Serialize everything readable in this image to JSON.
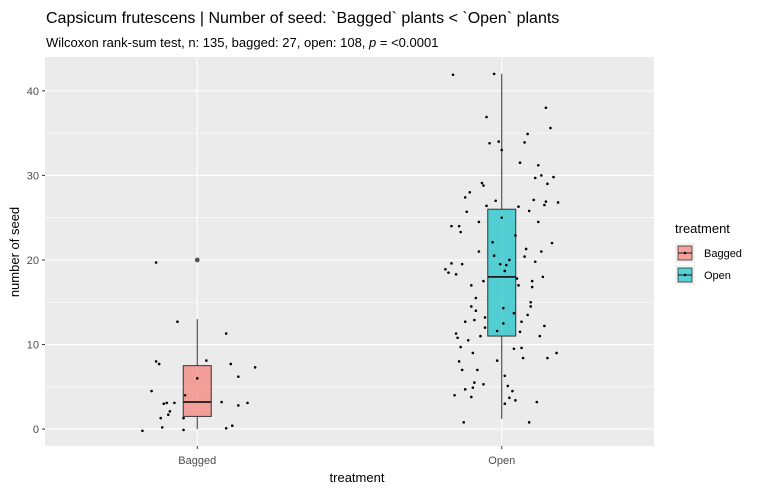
{
  "chart_data": {
    "type": "box",
    "title": "Capsicum frutescens | Number of seed: `Bagged` plants < `Open` plants",
    "subtitle": {
      "prefix": "Wilcoxon rank-sum test, n: 135, bagged: 27, open: 108, ",
      "p_symbol": "p",
      "suffix": " = <0.0001"
    },
    "xlabel": "treatment",
    "ylabel": "number of seed",
    "ylim": [
      -2,
      44
    ],
    "yticks": [
      0,
      10,
      20,
      30,
      40
    ],
    "categories": [
      "Bagged",
      "Open"
    ],
    "grid": true,
    "legend": {
      "title": "treatment",
      "position": "right",
      "entries": [
        "Bagged",
        "Open"
      ]
    },
    "colors": {
      "Bagged": "#F8766D",
      "Open": "#00BFC4",
      "panel": "#EBEBEB",
      "grid": "#FFFFFF",
      "points": "#000000",
      "outlier": "#555555"
    },
    "boxes": [
      {
        "category": "Bagged",
        "min": 0,
        "q1": 1.5,
        "median": 3.2,
        "q3": 7.5,
        "max": 13,
        "outliers": [
          20
        ]
      },
      {
        "category": "Open",
        "min": 1.2,
        "q1": 11,
        "median": 18,
        "q3": 26,
        "max": 42,
        "outliers": []
      }
    ],
    "points": [
      {
        "category": "Bagged",
        "jitter": [
          -0.36,
          -0.3,
          -0.27,
          -0.27,
          -0.25,
          -0.24,
          -0.23,
          -0.22,
          -0.2,
          -0.19,
          -0.18,
          -0.15,
          -0.13,
          -0.09,
          -0.09,
          -0.08,
          0.0,
          0.06,
          0.16,
          0.19,
          0.19,
          0.22,
          0.23,
          0.27,
          0.27,
          0.33,
          0.38
        ],
        "values": [
          -0.2,
          4.5,
          8.0,
          19.7,
          7.7,
          1.3,
          0.2,
          3.0,
          3.1,
          1.7,
          2.1,
          3.1,
          12.7,
          1.3,
          -0.1,
          4.0,
          6.0,
          8.1,
          3.2,
          11.3,
          0.1,
          7.7,
          0.4,
          2.8,
          6.2,
          3.1,
          7.3
        ]
      },
      {
        "category": "Open",
        "jitter": [
          -0.37,
          -0.35,
          -0.33,
          -0.33,
          -0.32,
          -0.31,
          -0.3,
          -0.3,
          -0.29,
          -0.28,
          -0.28,
          -0.27,
          -0.27,
          -0.26,
          -0.26,
          -0.25,
          -0.24,
          -0.24,
          -0.24,
          -0.23,
          -0.22,
          -0.21,
          -0.2,
          -0.2,
          -0.2,
          -0.19,
          -0.19,
          -0.18,
          -0.18,
          -0.17,
          -0.17,
          -0.16,
          -0.15,
          -0.15,
          -0.14,
          -0.13,
          -0.12,
          -0.12,
          -0.12,
          -0.11,
          -0.11,
          -0.1,
          -0.1,
          -0.08,
          -0.06,
          -0.05,
          -0.05,
          -0.04,
          -0.03,
          -0.03,
          -0.02,
          -0.01,
          0.0,
          0.0,
          0.01,
          0.01,
          0.02,
          0.02,
          0.02,
          0.03,
          0.04,
          0.05,
          0.05,
          0.07,
          0.08,
          0.08,
          0.09,
          0.09,
          0.1,
          0.11,
          0.11,
          0.12,
          0.12,
          0.13,
          0.13,
          0.14,
          0.15,
          0.15,
          0.16,
          0.17,
          0.17,
          0.18,
          0.18,
          0.19,
          0.19,
          0.2,
          0.2,
          0.21,
          0.22,
          0.22,
          0.23,
          0.24,
          0.24,
          0.25,
          0.26,
          0.26,
          0.27,
          0.28,
          0.28,
          0.29,
          0.29,
          0.3,
          0.3,
          0.32,
          0.33,
          0.34,
          0.36,
          0.37
        ],
        "values": [
          18.9,
          18.5,
          24.0,
          19.6,
          41.9,
          4.0,
          11.3,
          18.3,
          10.8,
          24.0,
          8.0,
          23.3,
          9.7,
          19.5,
          7.0,
          0.8,
          27.4,
          12.7,
          4.7,
          25.7,
          10.5,
          28.0,
          14.5,
          17.0,
          3.8,
          4.9,
          9.0,
          12.9,
          5.5,
          15.5,
          14.0,
          7.0,
          21.0,
          24.5,
          11.0,
          29.1,
          5.3,
          28.8,
          17.5,
          12.0,
          13.2,
          26.4,
          36.9,
          33.8,
          22.1,
          42.0,
          20.5,
          27.0,
          11.6,
          8.1,
          34.0,
          19.5,
          25.0,
          33.0,
          14.3,
          12.5,
          18.7,
          6.3,
          3.0,
          19.4,
          5.1,
          20.0,
          3.7,
          4.5,
          9.5,
          13.7,
          22.9,
          3.4,
          17.8,
          26.3,
          17.0,
          11.5,
          31.5,
          12.7,
          9.6,
          8.4,
          33.9,
          20.4,
          21.3,
          34.9,
          13.5,
          25.8,
          0.8,
          14.5,
          15.0,
          17.5,
          16.8,
          27.1,
          29.7,
          19.8,
          3.2,
          31.2,
          24.5,
          11.0,
          30.0,
          21.0,
          18.0,
          26.5,
          12.2,
          26.9,
          38.0,
          29.0,
          8.4,
          35.6,
          22.0,
          29.8,
          9.0,
          26.8
        ]
      }
    ]
  }
}
